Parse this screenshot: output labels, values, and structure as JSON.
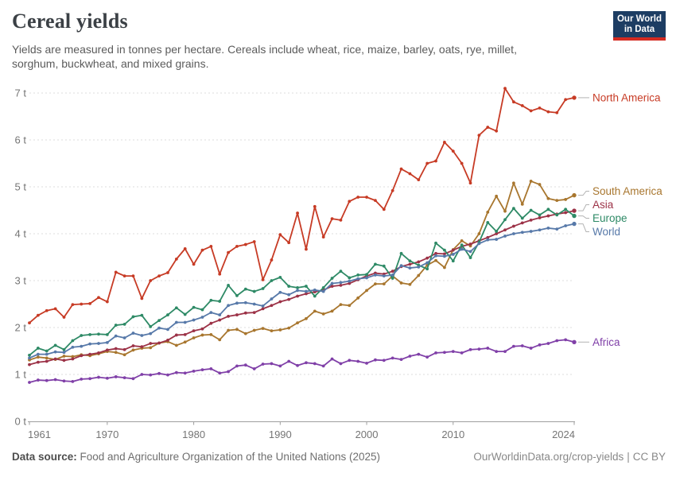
{
  "header": {
    "title": "Cereal yields",
    "subtitle": "Yields are measured in tonnes per hectare. Cereals include wheat, rice, maize, barley, oats, rye, millet, sorghum, buckwheat, and mixed grains.",
    "logo": {
      "line1": "Our World",
      "line2": "in Data",
      "bg_color": "#1d3d63",
      "stripe_color": "#d42b21"
    }
  },
  "chart_data": {
    "type": "line",
    "title": "Cereal yields",
    "ylabel": "tonnes per hectare",
    "xlim": [
      1961,
      2024
    ],
    "ylim": [
      0,
      7.3
    ],
    "grid": "horizontal-dashed",
    "legend": "right-edge-labels",
    "grid_color": "#dcdcdc",
    "axis_color": "#9e9e9e",
    "tick_color": "#757575",
    "connector_color": "#b3b3b3",
    "x_ticks": [
      1961,
      1970,
      1980,
      1990,
      2000,
      2010,
      2024
    ],
    "y_ticks": [
      {
        "value": 0,
        "label": "0 t"
      },
      {
        "value": 1,
        "label": "1 t"
      },
      {
        "value": 2,
        "label": "2 t"
      },
      {
        "value": 3,
        "label": "3 t"
      },
      {
        "value": 4,
        "label": "4 t"
      },
      {
        "value": 5,
        "label": "5 t"
      },
      {
        "value": 6,
        "label": "6 t"
      },
      {
        "value": 7,
        "label": "7 t"
      }
    ],
    "years": [
      1961,
      1962,
      1963,
      1964,
      1965,
      1966,
      1967,
      1968,
      1969,
      1970,
      1971,
      1972,
      1973,
      1974,
      1975,
      1976,
      1977,
      1978,
      1979,
      1980,
      1981,
      1982,
      1983,
      1984,
      1985,
      1986,
      1987,
      1988,
      1989,
      1990,
      1991,
      1992,
      1993,
      1994,
      1995,
      1996,
      1997,
      1998,
      1999,
      2000,
      2001,
      2002,
      2003,
      2004,
      2005,
      2006,
      2007,
      2008,
      2009,
      2010,
      2011,
      2012,
      2013,
      2014,
      2015,
      2016,
      2017,
      2018,
      2019,
      2020,
      2021,
      2022,
      2023,
      2024
    ],
    "series": [
      {
        "name": "North America",
        "color": "#c73b25",
        "values": [
          2.1,
          2.26,
          2.36,
          2.4,
          2.22,
          2.49,
          2.5,
          2.51,
          2.64,
          2.55,
          3.18,
          3.1,
          3.1,
          2.62,
          3.0,
          3.1,
          3.17,
          3.46,
          3.68,
          3.35,
          3.65,
          3.73,
          3.14,
          3.6,
          3.73,
          3.77,
          3.83,
          3.02,
          3.44,
          3.98,
          3.81,
          4.44,
          3.67,
          4.58,
          3.93,
          4.32,
          4.29,
          4.69,
          4.78,
          4.78,
          4.71,
          4.52,
          4.92,
          5.38,
          5.28,
          5.15,
          5.5,
          5.55,
          5.95,
          5.76,
          5.5,
          5.08,
          6.1,
          6.27,
          6.19,
          7.1,
          6.81,
          6.73,
          6.62,
          6.68,
          6.6,
          6.58,
          6.86,
          6.9
        ]
      },
      {
        "name": "South America",
        "color": "#a8762e",
        "values": [
          1.31,
          1.37,
          1.35,
          1.32,
          1.39,
          1.38,
          1.42,
          1.4,
          1.44,
          1.49,
          1.47,
          1.42,
          1.52,
          1.56,
          1.57,
          1.67,
          1.7,
          1.62,
          1.69,
          1.78,
          1.84,
          1.85,
          1.74,
          1.94,
          1.96,
          1.87,
          1.94,
          1.98,
          1.93,
          1.95,
          1.99,
          2.1,
          2.19,
          2.35,
          2.29,
          2.35,
          2.49,
          2.47,
          2.63,
          2.79,
          2.93,
          2.93,
          3.1,
          2.95,
          2.92,
          3.11,
          3.33,
          3.43,
          3.28,
          3.66,
          3.85,
          3.74,
          4.0,
          4.46,
          4.8,
          4.48,
          5.08,
          4.63,
          5.12,
          5.05,
          4.75,
          4.71,
          4.73,
          4.82
        ]
      },
      {
        "name": "Asia",
        "color": "#9c3247",
        "values": [
          1.21,
          1.26,
          1.28,
          1.33,
          1.3,
          1.33,
          1.4,
          1.43,
          1.46,
          1.52,
          1.55,
          1.53,
          1.61,
          1.59,
          1.66,
          1.67,
          1.73,
          1.84,
          1.85,
          1.93,
          1.97,
          2.09,
          2.16,
          2.24,
          2.27,
          2.31,
          2.32,
          2.4,
          2.47,
          2.55,
          2.6,
          2.67,
          2.72,
          2.76,
          2.8,
          2.88,
          2.9,
          2.94,
          3.02,
          3.1,
          3.16,
          3.14,
          3.2,
          3.3,
          3.35,
          3.4,
          3.48,
          3.58,
          3.57,
          3.65,
          3.73,
          3.78,
          3.85,
          3.92,
          4.0,
          4.08,
          4.16,
          4.23,
          4.29,
          4.34,
          4.38,
          4.42,
          4.45,
          4.49
        ]
      },
      {
        "name": "Europe",
        "color": "#2e8a66",
        "values": [
          1.41,
          1.56,
          1.5,
          1.62,
          1.53,
          1.72,
          1.83,
          1.85,
          1.86,
          1.85,
          2.05,
          2.07,
          2.23,
          2.26,
          2.02,
          2.15,
          2.27,
          2.42,
          2.28,
          2.43,
          2.38,
          2.58,
          2.56,
          2.9,
          2.68,
          2.82,
          2.77,
          2.83,
          3.0,
          3.07,
          2.88,
          2.85,
          2.88,
          2.67,
          2.85,
          3.05,
          3.2,
          3.06,
          3.12,
          3.13,
          3.35,
          3.31,
          3.05,
          3.58,
          3.42,
          3.33,
          3.25,
          3.8,
          3.65,
          3.42,
          3.76,
          3.49,
          3.82,
          4.24,
          4.05,
          4.3,
          4.54,
          4.33,
          4.5,
          4.4,
          4.52,
          4.4,
          4.52,
          4.38
        ]
      },
      {
        "name": "World",
        "color": "#5779a9",
        "values": [
          1.35,
          1.43,
          1.43,
          1.48,
          1.47,
          1.58,
          1.6,
          1.65,
          1.66,
          1.68,
          1.82,
          1.78,
          1.88,
          1.83,
          1.87,
          1.99,
          1.96,
          2.11,
          2.11,
          2.16,
          2.22,
          2.32,
          2.27,
          2.47,
          2.52,
          2.53,
          2.5,
          2.46,
          2.61,
          2.75,
          2.7,
          2.79,
          2.77,
          2.8,
          2.77,
          2.94,
          2.96,
          2.99,
          3.04,
          3.06,
          3.12,
          3.1,
          3.12,
          3.32,
          3.27,
          3.29,
          3.38,
          3.53,
          3.52,
          3.56,
          3.67,
          3.62,
          3.79,
          3.87,
          3.88,
          3.95,
          4.0,
          4.03,
          4.05,
          4.08,
          4.12,
          4.1,
          4.17,
          4.21
        ]
      },
      {
        "name": "Africa",
        "color": "#8040a8",
        "values": [
          0.83,
          0.88,
          0.87,
          0.89,
          0.86,
          0.85,
          0.9,
          0.91,
          0.94,
          0.92,
          0.95,
          0.93,
          0.91,
          1.0,
          0.99,
          1.02,
          0.99,
          1.04,
          1.03,
          1.07,
          1.1,
          1.12,
          1.03,
          1.06,
          1.18,
          1.2,
          1.12,
          1.22,
          1.23,
          1.18,
          1.28,
          1.19,
          1.25,
          1.23,
          1.18,
          1.33,
          1.23,
          1.3,
          1.28,
          1.24,
          1.31,
          1.3,
          1.35,
          1.32,
          1.39,
          1.43,
          1.37,
          1.46,
          1.47,
          1.49,
          1.46,
          1.53,
          1.54,
          1.56,
          1.49,
          1.49,
          1.6,
          1.61,
          1.56,
          1.63,
          1.66,
          1.72,
          1.74,
          1.69
        ]
      }
    ]
  },
  "footer": {
    "source_label": "Data source:",
    "source_text": " Food and Agriculture Organization of the United Nations (2025)",
    "link": "OurWorldinData.org/crop-yields",
    "separator": "|",
    "license": "CC BY"
  }
}
